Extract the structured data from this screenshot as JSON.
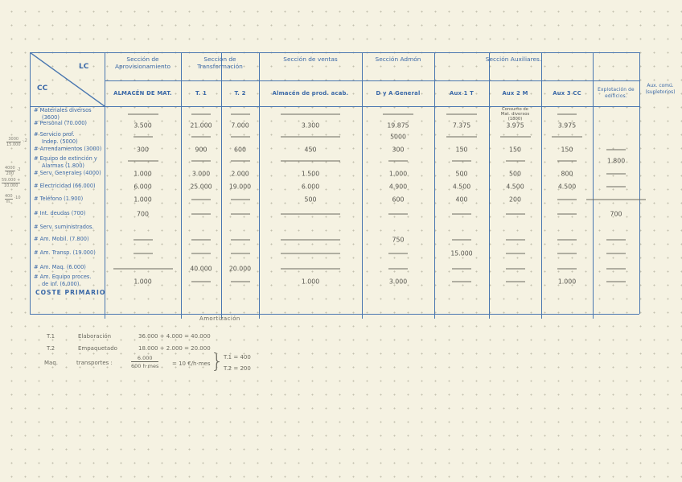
{
  "colors": {
    "paper": "#f5f2e2",
    "dots": "#c3c0ae",
    "ink_blue": "#3a68a7",
    "grid_blue": "#4a77b0",
    "pencil_gray": "#5e5d55"
  },
  "corner": {
    "top_right": "LC",
    "bottom_left": "CC"
  },
  "header": {
    "groups": [
      {
        "label": "Sección de Aprovisionamiento",
        "col_start": 0,
        "col_end": 0
      },
      {
        "label": "Sección de Transformación",
        "col_start": 1,
        "col_end": 2
      },
      {
        "label": "Sección de ventas",
        "col_start": 3,
        "col_end": 3
      },
      {
        "label": "Sección Admón",
        "col_start": 4,
        "col_end": 4
      },
      {
        "label": "Sección Auxiliares.",
        "col_start": 5,
        "col_end": 7
      },
      {
        "label": "",
        "col_start": 8,
        "col_end": 8
      }
    ],
    "subheaders": [
      "ALMACÉN DE MAT.",
      "T. 1",
      "T. 2",
      "Almacén de prod. acab.",
      "D y A General",
      "Aux 1 T",
      "Aux 2 M",
      "Aux 3 CC",
      "Explotación de edificios."
    ],
    "outside_column": [
      "Aux. comú.",
      "(supletorios)"
    ]
  },
  "rows": [
    {
      "label": [
        "# Materiales diversos",
        "(3600)"
      ],
      "cells": [
        "——",
        "—",
        "—",
        "———",
        "——",
        "——",
        {
          "note": [
            "Consumo de",
            "Mat. diversos",
            "(1800)"
          ]
        },
        "—",
        "",
        ""
      ]
    },
    {
      "label": [
        "# Personal  (70.000)"
      ],
      "cells": [
        "3.500",
        "21.000",
        "7.000",
        "3.300",
        "19.875",
        "7.375",
        "3.975",
        "3.975",
        "",
        ""
      ]
    },
    {
      "label": [
        "# Servicio prof.",
        "Indep.  (5000)"
      ],
      "cells": [
        "—",
        "—",
        "—",
        "———",
        "5000",
        "——",
        "——",
        "——",
        "",
        ""
      ]
    },
    {
      "label": [
        "# Arrendamientos (3000)"
      ],
      "cells": [
        "300",
        "900",
        "600",
        "450",
        "300",
        "150",
        "150",
        "150",
        "—",
        ""
      ]
    },
    {
      "label": [
        "# Equipo de extinción y",
        "Alarmas  (1.800)"
      ],
      "cells": [
        "——",
        "—",
        "—",
        "———",
        "—",
        "—",
        "—",
        "—",
        "1.800",
        ""
      ]
    },
    {
      "label": [
        "# Serv. Generales  (4000)"
      ],
      "cells": [
        "1.000",
        "3.000",
        "2.000",
        "1.500",
        "1.000",
        "500",
        "500",
        "800",
        "—",
        ""
      ]
    },
    {
      "label": [
        "# Electricidad  (66.000)"
      ],
      "cells": [
        "6.000",
        "25.000",
        "19.000",
        "6.000",
        "4.900",
        "4.500",
        "4.500",
        "4.500",
        "—",
        ""
      ]
    },
    {
      "label": [
        "# Teléfono  (1.900)"
      ],
      "cells": [
        "1.000",
        "—",
        "—",
        "500",
        "600",
        "400",
        "200",
        "—",
        "———",
        ""
      ]
    },
    {
      "label": [
        "# Int. deudas  (700)"
      ],
      "cells": [
        "700",
        "—",
        "—",
        "———",
        "—",
        "—",
        "—",
        "—",
        "700",
        ""
      ]
    },
    {
      "label": [
        "# Serv. suministrados."
      ],
      "cells": [
        "",
        "",
        "",
        "",
        "",
        "",
        "",
        "",
        "",
        ""
      ]
    },
    {
      "label": [
        "# Am. Mobil.  (7.800)"
      ],
      "cells": [
        "—",
        "—",
        "—",
        "———",
        "750",
        "—",
        "—",
        "—",
        "—",
        ""
      ]
    },
    {
      "label": [
        "# Am. Transp.  (19.000)"
      ],
      "cells": [
        "—",
        "—",
        "—",
        "———",
        "—",
        "15.000",
        "—",
        "—",
        "—",
        ""
      ]
    },
    {
      "label": [
        "# Am. Maq.  (6.000)"
      ],
      "cells": [
        "———",
        "40.000",
        "20.000",
        "———",
        "—",
        "—",
        "—",
        "—",
        "—",
        ""
      ]
    },
    {
      "label": [
        "# Am. Equipo proces.",
        "de inf.  (6.000)"
      ],
      "cells": [
        "1.000",
        "—",
        "—",
        "1.000",
        "3.000",
        "—",
        "—",
        "1.000",
        "—",
        ""
      ]
    },
    {
      "label": [
        "COSTE PRIMARIO"
      ],
      "cells": []
    }
  ],
  "footnote": {
    "title": "Amortización",
    "lines": [
      {
        "tag": "T.1",
        "name": "Elaboración",
        "calc": "36.000  +  4.000   =   40.000"
      },
      {
        "tag": "T.2",
        "name": "Empaquetado",
        "calc": "18.000  +  2.000   =   20.000"
      }
    ],
    "maq_line": {
      "tag": "Maq.",
      "name": "transportes :",
      "fraction": {
        "num": "6.000",
        "den": "600 h·mes"
      },
      "result": "=  10 €/h·mes",
      "brace_values": [
        "T.1 = 400",
        "T.2 = 200"
      ]
    }
  },
  "margin_notes": [
    {
      "num": "3000",
      "den": "15.000",
      "side": "·,2"
    },
    {
      "num": "4000",
      "den": "200",
      "side": "·2"
    },
    {
      "num": "59.000 +",
      "den": "10.000",
      "side": ""
    },
    {
      "num": "400",
      "den": "m.",
      "side": "·10"
    }
  ]
}
